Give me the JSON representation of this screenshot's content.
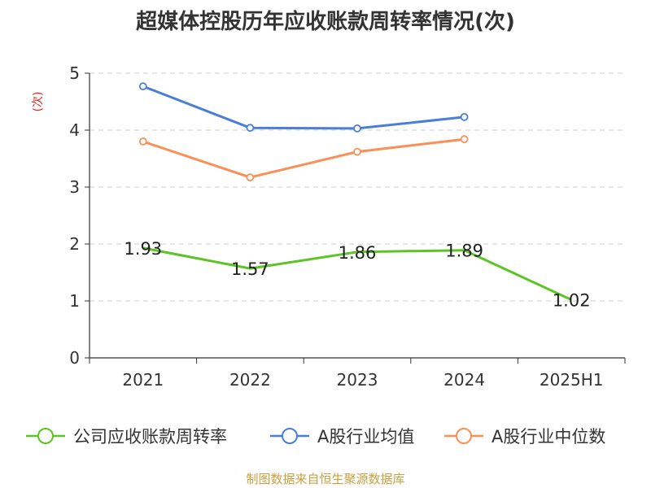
{
  "chart_data": {
    "type": "line",
    "title": "超媒体控股历年应收账款周转率情况(次)",
    "ylabel": "(次)",
    "xlabel": "",
    "categories": [
      "2021",
      "2022",
      "2023",
      "2024",
      "2025H1"
    ],
    "ylim": [
      0,
      5
    ],
    "yticks": [
      "0",
      "1",
      "2",
      "3",
      "4",
      "5"
    ],
    "grid": true,
    "legend_position": "bottom",
    "series": [
      {
        "name": "公司应收账款周转率",
        "values": [
          1.93,
          1.57,
          1.86,
          1.89,
          1.02
        ],
        "labels": [
          "1.93",
          "1.57",
          "1.86",
          "1.89",
          "1.02"
        ],
        "color": "#5cc424",
        "marker": "none",
        "show_labels": true
      },
      {
        "name": "A股行业均值",
        "values": [
          4.77,
          4.04,
          4.03,
          4.23,
          null
        ],
        "color": "#4a7fd8",
        "marker": "hollow-circle",
        "show_labels": false
      },
      {
        "name": "A股行业中位数",
        "values": [
          3.8,
          3.17,
          3.62,
          3.84,
          null
        ],
        "color": "#fb8f55",
        "marker": "hollow-circle",
        "show_labels": false
      }
    ]
  },
  "source": "制图数据来自恒生聚源数据库"
}
